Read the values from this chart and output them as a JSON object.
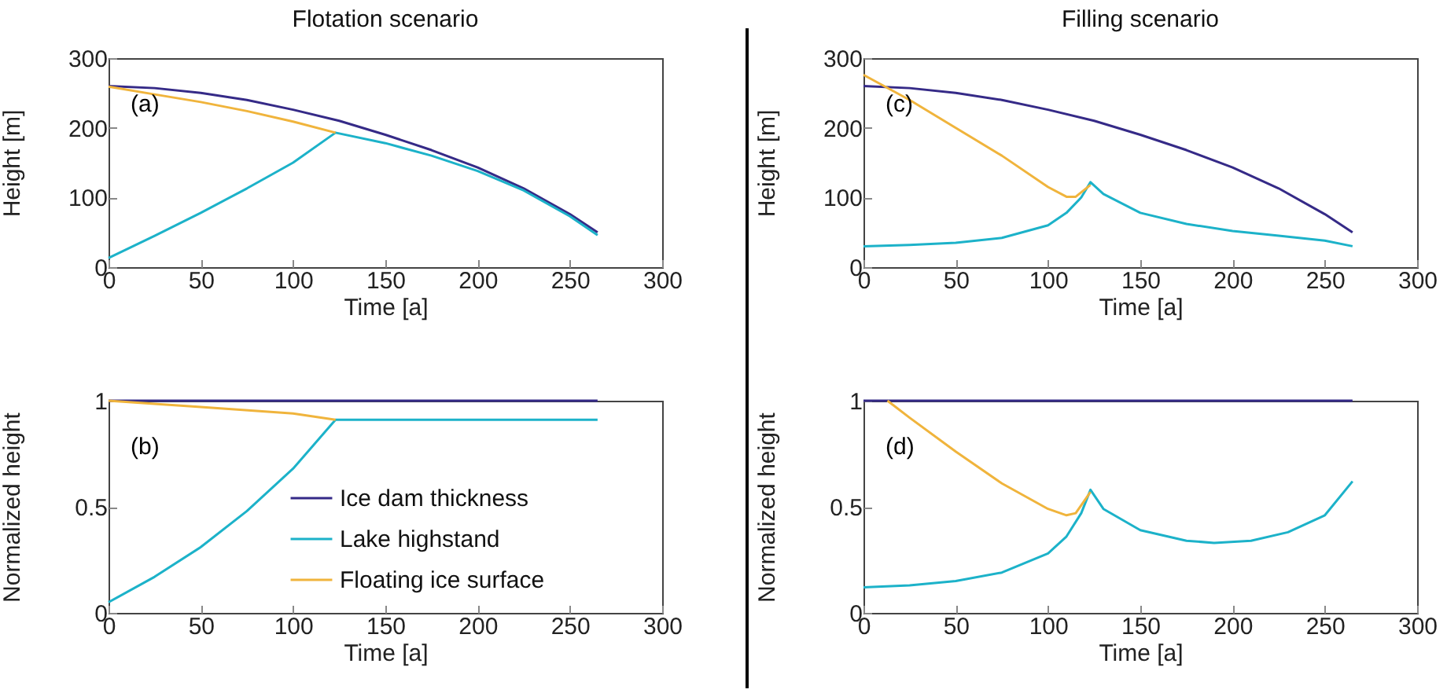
{
  "chart_data": [
    {
      "type": "line",
      "title": "Flotation scenario",
      "xlabel": "Time [a]",
      "ylabel": "Height [m]",
      "annotations": [
        "(a)"
      ],
      "xlim": [
        0,
        300
      ],
      "xticks": [
        0,
        50,
        100,
        150,
        200,
        250,
        300
      ],
      "ylim": [
        0,
        300
      ],
      "yticks": [
        0,
        100,
        200,
        300
      ],
      "legend": false,
      "series": [
        {
          "color": "#352a87",
          "x": [
            0,
            25,
            50,
            75,
            100,
            125,
            150,
            175,
            200,
            225,
            250,
            265
          ],
          "values": [
            260,
            257,
            250,
            240,
            226,
            210,
            190,
            168,
            143,
            113,
            76,
            50
          ]
        },
        {
          "color": "#1cb2c9",
          "x": [
            0,
            25,
            50,
            75,
            100,
            123,
            150,
            175,
            200,
            225,
            250,
            265
          ],
          "values": [
            13,
            45,
            78,
            113,
            150,
            193,
            178,
            160,
            138,
            110,
            73,
            46
          ]
        },
        {
          "color": "#f0b43c",
          "x": [
            0,
            25,
            50,
            75,
            100,
            123
          ],
          "values": [
            259,
            248,
            237,
            224,
            209,
            193
          ]
        }
      ]
    },
    {
      "type": "line",
      "title": "Filling scenario",
      "xlabel": "Time [a]",
      "ylabel": "Height [m]",
      "annotations": [
        "(c)"
      ],
      "xlim": [
        0,
        300
      ],
      "xticks": [
        0,
        50,
        100,
        150,
        200,
        250,
        300
      ],
      "ylim": [
        0,
        300
      ],
      "yticks": [
        0,
        100,
        200,
        300
      ],
      "legend": false,
      "series": [
        {
          "color": "#352a87",
          "x": [
            0,
            25,
            50,
            75,
            100,
            125,
            150,
            175,
            200,
            225,
            250,
            265
          ],
          "values": [
            260,
            257,
            250,
            240,
            226,
            210,
            190,
            168,
            143,
            113,
            76,
            50
          ]
        },
        {
          "color": "#1cb2c9",
          "x": [
            0,
            25,
            50,
            75,
            100,
            110,
            118,
            123,
            130,
            150,
            175,
            200,
            225,
            250,
            265
          ],
          "values": [
            30,
            32,
            35,
            42,
            60,
            78,
            100,
            122,
            105,
            78,
            62,
            52,
            45,
            38,
            30
          ]
        },
        {
          "color": "#f0b43c",
          "x": [
            0,
            25,
            50,
            75,
            100,
            110,
            115,
            123
          ],
          "values": [
            276,
            240,
            200,
            160,
            115,
            101,
            101,
            118
          ]
        }
      ]
    },
    {
      "type": "line",
      "xlabel": "Time [a]",
      "ylabel": "Normalized height",
      "annotations": [
        "(b)"
      ],
      "xlim": [
        0,
        300
      ],
      "xticks": [
        0,
        50,
        100,
        150,
        200,
        250,
        300
      ],
      "ylim": [
        0,
        1
      ],
      "yticks": [
        0,
        0.5,
        1
      ],
      "legend": "right",
      "series": [
        {
          "name": "Ice dam thickness",
          "color": "#352a87",
          "x": [
            0,
            265
          ],
          "values": [
            1,
            1
          ]
        },
        {
          "name": "Lake highstand",
          "color": "#1cb2c9",
          "x": [
            0,
            25,
            50,
            75,
            100,
            123,
            265
          ],
          "values": [
            0.05,
            0.17,
            0.31,
            0.48,
            0.68,
            0.91,
            0.91
          ]
        },
        {
          "name": "Floating ice surface",
          "color": "#f0b43c",
          "x": [
            0,
            50,
            100,
            123
          ],
          "values": [
            1,
            0.97,
            0.94,
            0.91
          ]
        }
      ]
    },
    {
      "type": "line",
      "xlabel": "Time [a]",
      "ylabel": "Normalized height",
      "annotations": [
        "(d)"
      ],
      "xlim": [
        0,
        300
      ],
      "xticks": [
        0,
        50,
        100,
        150,
        200,
        250,
        300
      ],
      "ylim": [
        0,
        1
      ],
      "yticks": [
        0,
        0.5,
        1
      ],
      "legend": false,
      "series": [
        {
          "color": "#352a87",
          "x": [
            0,
            265
          ],
          "values": [
            1,
            1
          ]
        },
        {
          "color": "#1cb2c9",
          "x": [
            0,
            25,
            50,
            75,
            100,
            110,
            118,
            123,
            130,
            150,
            175,
            190,
            210,
            230,
            250,
            265
          ],
          "values": [
            0.12,
            0.13,
            0.15,
            0.19,
            0.28,
            0.36,
            0.47,
            0.58,
            0.49,
            0.39,
            0.34,
            0.33,
            0.34,
            0.38,
            0.46,
            0.62
          ]
        },
        {
          "color": "#f0b43c",
          "x": [
            13,
            25,
            50,
            75,
            100,
            110,
            115,
            123
          ],
          "values": [
            1,
            0.92,
            0.76,
            0.61,
            0.49,
            0.46,
            0.47,
            0.57
          ]
        }
      ]
    }
  ]
}
